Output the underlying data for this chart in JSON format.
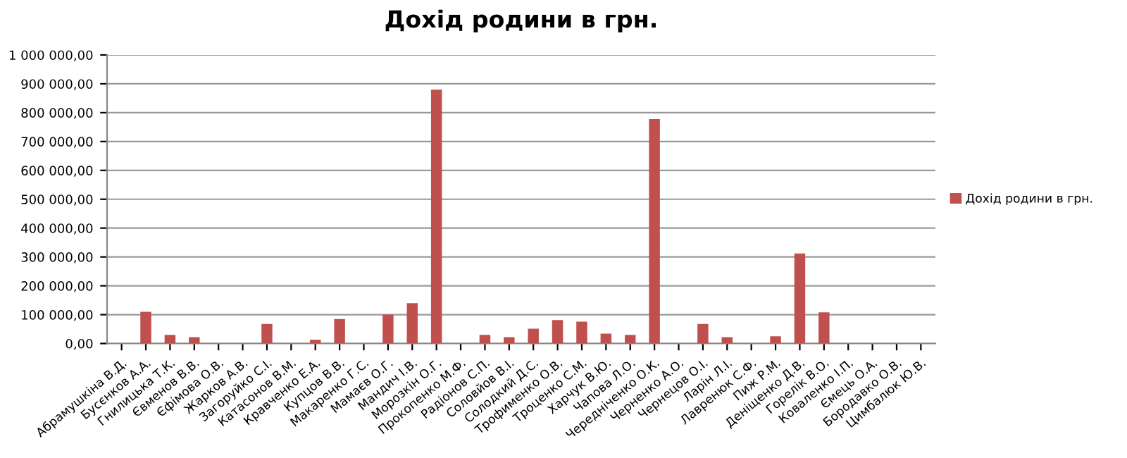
{
  "chart_data": {
    "type": "bar",
    "title": "Дохід родини в грн.",
    "categories": [
      "Абрамушкіна В.Д.",
      "Бусєнков А.А.",
      "Гнилицька Т.К.",
      "Євменов В.В.",
      "Єфімова О.В.",
      "Жарков А.В.",
      "Загоруйко С.І.",
      "Катасонов В.М.",
      "Кравченко Е.А.",
      "Купцов В.В.",
      "Макаренко Г.С.",
      "Мамаєв О.Г.",
      "Мандич І.В.",
      "Морозкін О.Г.",
      "Прокопенко М.Ф.",
      "Радіонов С.П.",
      "Соловйов В.І.",
      "Солодкий Д.С.",
      "Трофименко О.В.",
      "Троценко С.М.",
      "Харчук В.Ю.",
      "Чапова Л.О.",
      "Чередніченко О.К.",
      "Черненко А.О.",
      "Чернецов О.І.",
      "Ларін Л.І.",
      "Лавренюк С.Ф.",
      "Пиж Р.М.",
      "Деніщенко Д.В.",
      "Горелік В.О.",
      "Коваленко І.П.",
      "Ємець О.А.",
      "Бородавко О.В.",
      "Цимбалюк Ю.В."
    ],
    "series": [
      {
        "name": "Дохід родини в грн.",
        "color": "#c0504d",
        "values": [
          0,
          110000,
          30000,
          22000,
          0,
          0,
          68000,
          0,
          13000,
          85000,
          0,
          100000,
          140000,
          880000,
          0,
          30000,
          22000,
          51000,
          81000,
          76000,
          34000,
          30000,
          778000,
          0,
          68000,
          22000,
          0,
          25000,
          312000,
          108000,
          0,
          0,
          0,
          0
        ]
      }
    ],
    "ylim": [
      0,
      1000000
    ],
    "yticks": [
      {
        "value": 0,
        "label": "0,00"
      },
      {
        "value": 100000,
        "label": "100 000,00"
      },
      {
        "value": 200000,
        "label": "200 000,00"
      },
      {
        "value": 300000,
        "label": "300 000,00"
      },
      {
        "value": 400000,
        "label": "400 000,00"
      },
      {
        "value": 500000,
        "label": "500 000,00"
      },
      {
        "value": 600000,
        "label": "600 000,00"
      },
      {
        "value": 700000,
        "label": "700 000,00"
      },
      {
        "value": 800000,
        "label": "800 000,00"
      },
      {
        "value": 900000,
        "label": "900 000,00"
      },
      {
        "value": 1000000,
        "label": "1 000 000,00"
      }
    ],
    "grid": "y",
    "legend": "right"
  }
}
